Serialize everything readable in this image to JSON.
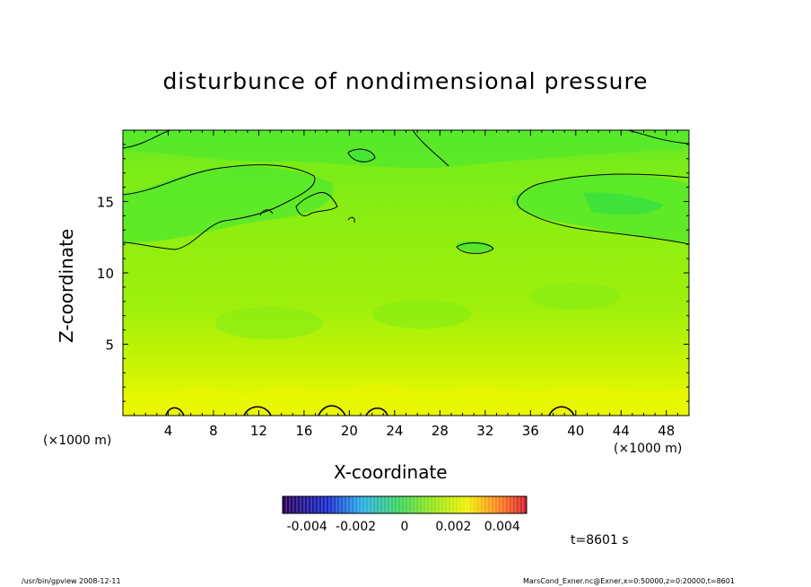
{
  "chart_data": {
    "type": "heatmap",
    "title": "disturbunce of nondimensional pressure",
    "xlabel": "X-coordinate",
    "ylabel": "Z-coordinate",
    "x_unit_label": "(×1000 m)",
    "x_ticks": [
      4,
      8,
      12,
      16,
      20,
      24,
      28,
      32,
      36,
      40,
      44,
      48
    ],
    "y_ticks": [
      5,
      10,
      15
    ],
    "xlim": [
      0,
      50
    ],
    "ylim": [
      0,
      20
    ],
    "colorbar": {
      "ticks": [
        "-0.004",
        "-0.002",
        "0",
        "0.002",
        "0.004"
      ],
      "range": [
        -0.005,
        0.005
      ]
    },
    "time_label": "t=8601 s",
    "colors": {
      "field_top": "#3fe62a",
      "field_mid": "#8fed0a",
      "field_bottom": "#f3f800"
    }
  },
  "footer": {
    "left": "/usr/bin/gpview   2008-12-11",
    "right": "MarsCond_Exner.nc@Exner,x=0:50000,z=0:20000,t=8601"
  }
}
